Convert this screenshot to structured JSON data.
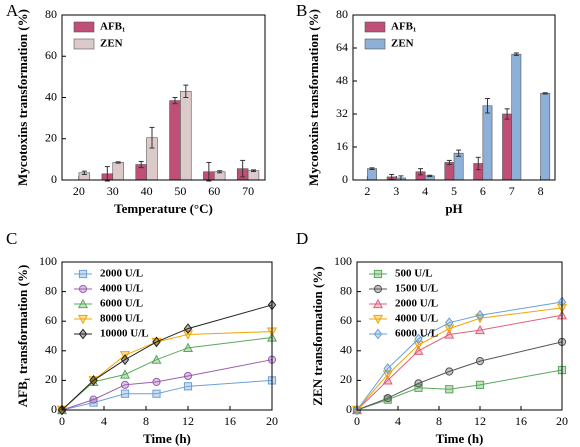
{
  "chart_data": [
    {
      "type": "bar",
      "panel_label": "A",
      "xlabel": "Temperature (°C)",
      "ylabel": "Mycotoxins transformation (%)",
      "categories": [
        "20",
        "30",
        "40",
        "50",
        "60",
        "70"
      ],
      "series": [
        {
          "name": "AFB₁",
          "color": "#bf4f76",
          "values": [
            null,
            3,
            7.5,
            38.5,
            4,
            5.5
          ],
          "errors": [
            null,
            3.5,
            1.5,
            1.5,
            4.5,
            4
          ]
        },
        {
          "name": "ZEN",
          "color": "#dccaca",
          "values": [
            3.5,
            8.5,
            20.5,
            43,
            4,
            4.5
          ],
          "errors": [
            0.8,
            0.3,
            5,
            3,
            0.5,
            0.4
          ]
        }
      ],
      "ylim": [
        0,
        80
      ],
      "yticks": [
        0,
        20,
        40,
        60,
        80
      ],
      "legend": "upper left"
    },
    {
      "type": "bar",
      "panel_label": "B",
      "xlabel": "pH",
      "ylabel": "Mycotoxins transformation (%)",
      "categories": [
        "2",
        "3",
        "4",
        "5",
        "6",
        "7",
        "8"
      ],
      "series": [
        {
          "name": "AFB₁",
          "color": "#bf4f76",
          "values": [
            null,
            1.5,
            4,
            8.5,
            8,
            32,
            null
          ],
          "errors": [
            null,
            1.2,
            1.5,
            1,
            3,
            2.5,
            null
          ]
        },
        {
          "name": "ZEN",
          "color": "#8db0d9",
          "values": [
            5.5,
            1,
            2,
            13,
            36,
            61,
            42
          ],
          "errors": [
            0.4,
            1,
            0.3,
            1.5,
            3.5,
            0.6,
            0.3
          ]
        }
      ],
      "ylim": [
        0,
        80
      ],
      "yticks": [
        0,
        16,
        32,
        48,
        64,
        80
      ],
      "legend": "upper left"
    },
    {
      "type": "line",
      "panel_label": "C",
      "xlabel": "Time (h)",
      "ylabel": "AFB₁ transformation (%)",
      "x": [
        0,
        3,
        6,
        9,
        12,
        20
      ],
      "series": [
        {
          "name": "2000 U/L",
          "color": "#6aa0d8",
          "marker": "square",
          "values": [
            0,
            5,
            11,
            11,
            16,
            20
          ]
        },
        {
          "name": "4000 U/L",
          "color": "#9a5fb0",
          "marker": "circle",
          "values": [
            0,
            7,
            17,
            19,
            23,
            34
          ]
        },
        {
          "name": "6000 U/L",
          "color": "#5aa85a",
          "marker": "triangle",
          "values": [
            0,
            19,
            24,
            34,
            42,
            49
          ]
        },
        {
          "name": "8000 U/L",
          "color": "#f0a500",
          "marker": "triangle-down",
          "values": [
            0,
            20,
            37,
            46,
            51,
            53
          ]
        },
        {
          "name": "10000 U/L",
          "color": "#222222",
          "marker": "diamond",
          "values": [
            0,
            20,
            34,
            46,
            55,
            71
          ]
        }
      ],
      "xlim": [
        0,
        20
      ],
      "xticks": [
        0,
        4,
        8,
        12,
        16,
        20
      ],
      "ylim": [
        0,
        100
      ],
      "yticks": [
        0,
        20,
        40,
        60,
        80,
        100
      ],
      "legend": "upper left"
    },
    {
      "type": "line",
      "panel_label": "D",
      "xlabel": "Time (h)",
      "ylabel": "ZEN transformation (%)",
      "x": [
        0,
        3,
        6,
        9,
        12,
        20
      ],
      "series": [
        {
          "name": "500 U/L",
          "color": "#5aa85a",
          "marker": "square",
          "values": [
            0,
            7,
            15,
            14,
            17,
            27
          ]
        },
        {
          "name": "1500 U/L",
          "color": "#555555",
          "marker": "circle",
          "values": [
            0,
            8,
            18,
            26,
            33,
            46
          ]
        },
        {
          "name": "2000 U/L",
          "color": "#e0607a",
          "marker": "triangle",
          "values": [
            0,
            20,
            40,
            51,
            54,
            64
          ]
        },
        {
          "name": "4000 U/L",
          "color": "#f0a500",
          "marker": "triangle-down",
          "values": [
            0,
            24,
            44,
            55,
            62,
            69
          ]
        },
        {
          "name": "6000 U/L",
          "color": "#6aa0d8",
          "marker": "diamond",
          "values": [
            0,
            28,
            48,
            59,
            64,
            73
          ]
        }
      ],
      "xlim": [
        0,
        20
      ],
      "xticks": [
        0,
        4,
        8,
        12,
        16,
        20
      ],
      "ylim": [
        0,
        100
      ],
      "yticks": [
        0,
        20,
        40,
        60,
        80,
        100
      ],
      "legend": "upper left"
    }
  ]
}
